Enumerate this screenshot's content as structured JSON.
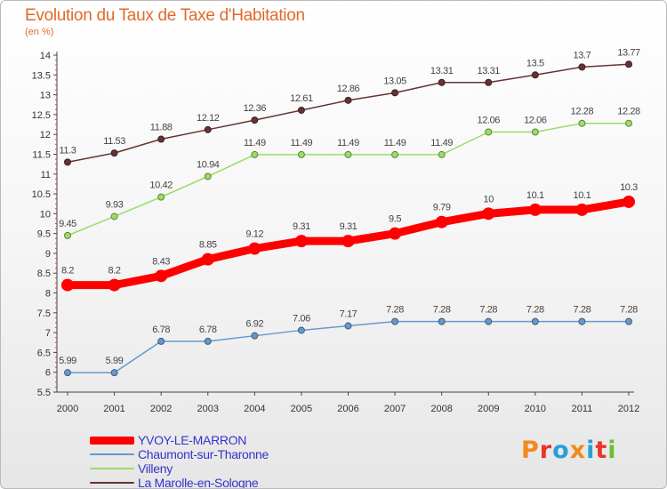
{
  "title": "Evolution du Taux de Taxe d'Habitation",
  "subtitle": "(en %)",
  "brand": {
    "letters": [
      "P",
      "r",
      "o",
      "x",
      "i",
      "t",
      "i"
    ],
    "colors": [
      "#f08a1e",
      "#e8352a",
      "#2a9fd6",
      "#f08a1e",
      "#2a9fd6",
      "#e8352a",
      "#6cbf2e"
    ]
  },
  "chart_data": {
    "type": "line",
    "title": "Evolution du Taux de Taxe d'Habitation",
    "ylabel": "(en %)",
    "ylim": [
      5.5,
      14
    ],
    "yticks": [
      "5.5",
      "6",
      "6.5",
      "7",
      "7.5",
      "8",
      "8.5",
      "9",
      "9.5",
      "10",
      "10.5",
      "11",
      "11.5",
      "12",
      "12.5",
      "13",
      "13.5",
      "14"
    ],
    "x": [
      "2000",
      "2001",
      "2002",
      "2003",
      "2004",
      "2005",
      "2006",
      "2007",
      "2008",
      "2009",
      "2010",
      "2011",
      "2012"
    ],
    "grid": false,
    "legend_position": "bottom-left",
    "series": [
      {
        "name": "YVOY-LE-MARRON",
        "color": "#ff0000",
        "width": 9,
        "values": [
          8.2,
          8.2,
          8.43,
          8.85,
          9.12,
          9.31,
          9.31,
          9.5,
          9.79,
          10,
          10.1,
          10.1,
          10.3
        ],
        "labels": [
          "8.2",
          "8.2",
          "8.43",
          "8.85",
          "9.12",
          "9.31",
          "9.31",
          "9.5",
          "9.79",
          "10",
          "10.1",
          "10.1",
          "10.3"
        ]
      },
      {
        "name": "Chaumont-sur-Tharonne",
        "color": "#6699cc",
        "width": 1.5,
        "values": [
          5.99,
          5.99,
          6.78,
          6.78,
          6.92,
          7.06,
          7.17,
          7.28,
          7.28,
          7.28,
          7.28,
          7.28,
          7.28
        ],
        "labels": [
          "5.99",
          "5.99",
          "6.78",
          "6.78",
          "6.92",
          "7.06",
          "7.17",
          "7.28",
          "7.28",
          "7.28",
          "7.28",
          "7.28",
          "7.28"
        ]
      },
      {
        "name": "Villeny",
        "color": "#99dd66",
        "width": 1.5,
        "values": [
          9.45,
          9.93,
          10.42,
          10.94,
          11.49,
          11.49,
          11.49,
          11.49,
          11.49,
          12.06,
          12.06,
          12.28,
          12.28
        ],
        "labels": [
          "9.45",
          "9.93",
          "10.42",
          "10.94",
          "11.49",
          "11.49",
          "11.49",
          "11.49",
          "11.49",
          "12.06",
          "12.06",
          "12.28",
          "12.28"
        ]
      },
      {
        "name": "La Marolle-en-Sologne",
        "color": "#663333",
        "width": 1.5,
        "values": [
          11.3,
          11.53,
          11.88,
          12.12,
          12.36,
          12.61,
          12.86,
          13.05,
          13.31,
          13.31,
          13.5,
          13.7,
          13.77
        ],
        "labels": [
          "11.3",
          "11.53",
          "11.88",
          "12.12",
          "12.36",
          "12.61",
          "12.86",
          "13.05",
          "13.31",
          "13.31",
          "13.5",
          "13.7",
          "13.77"
        ]
      }
    ]
  }
}
